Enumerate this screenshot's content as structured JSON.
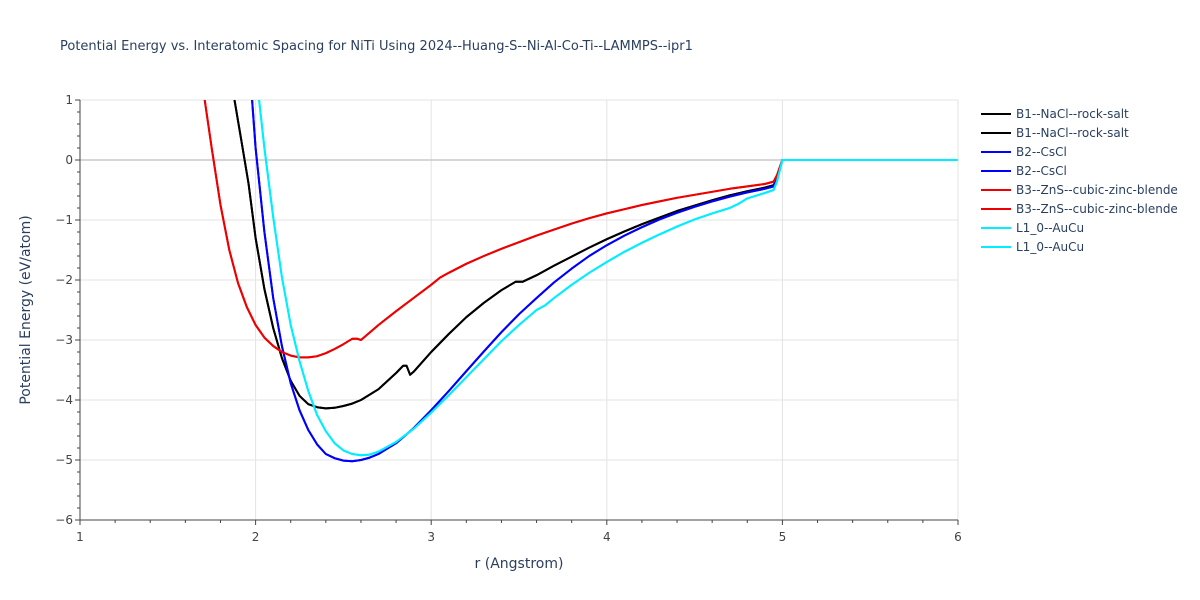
{
  "chart_data": {
    "type": "line",
    "title": "Potential Energy vs. Interatomic Spacing for NiTi Using 2024--Huang-S--Ni-Al-Co-Ti--LAMMPS--ipr1",
    "xlabel": "r (Angstrom)",
    "ylabel": "Potential Energy (eV/atom)",
    "xlim": [
      1,
      6
    ],
    "ylim": [
      -6,
      1
    ],
    "xticks": [
      1,
      2,
      3,
      4,
      5,
      6
    ],
    "yticks": [
      1,
      0,
      -1,
      -2,
      -3,
      -4,
      -5,
      -6
    ],
    "xtick_labels": [
      "1",
      "2",
      "3",
      "4",
      "5",
      "6"
    ],
    "ytick_labels": [
      "1",
      "0",
      "−1",
      "−2",
      "−3",
      "−4",
      "−5",
      "−6"
    ],
    "grid": true,
    "legend_position": "right",
    "series": [
      {
        "name": "B1--NaCl--rock-salt",
        "color": "#000000",
        "x": [
          1.88,
          1.92,
          1.96,
          2.0,
          2.05,
          2.1,
          2.15,
          2.2,
          2.25,
          2.3,
          2.35,
          2.4,
          2.45,
          2.5,
          2.55,
          2.6,
          2.7,
          2.8,
          2.84,
          2.86,
          2.88,
          2.9,
          3.0,
          3.1,
          3.2,
          3.3,
          3.4,
          3.48,
          3.52,
          3.6,
          3.7,
          3.8,
          3.9,
          4.0,
          4.1,
          4.2,
          4.3,
          4.4,
          4.5,
          4.6,
          4.7,
          4.8,
          4.9,
          4.95,
          4.97,
          4.99,
          5.0,
          5.5,
          6.0
        ],
        "y": [
          1.0,
          0.3,
          -0.4,
          -1.3,
          -2.15,
          -2.8,
          -3.3,
          -3.68,
          -3.93,
          -4.07,
          -4.12,
          -4.14,
          -4.13,
          -4.1,
          -4.06,
          -4.0,
          -3.82,
          -3.55,
          -3.43,
          -3.43,
          -3.58,
          -3.53,
          -3.2,
          -2.9,
          -2.62,
          -2.38,
          -2.17,
          -2.03,
          -2.03,
          -1.92,
          -1.76,
          -1.61,
          -1.46,
          -1.32,
          -1.19,
          -1.07,
          -0.96,
          -0.85,
          -0.76,
          -0.67,
          -0.59,
          -0.52,
          -0.46,
          -0.42,
          -0.3,
          -0.1,
          0.0,
          0.0,
          0.0
        ]
      },
      {
        "name": "B1--NaCl--rock-salt",
        "color": "#000000",
        "x": [
          1.88,
          1.92,
          1.96,
          2.0,
          2.05,
          2.1,
          2.15,
          2.2,
          2.25,
          2.3,
          2.35,
          2.4,
          2.45,
          2.5,
          2.55,
          2.6,
          2.7,
          2.8,
          2.84,
          2.86,
          2.88,
          2.9,
          3.0,
          3.1,
          3.2,
          3.3,
          3.4,
          3.48,
          3.52,
          3.6,
          3.7,
          3.8,
          3.9,
          4.0,
          4.1,
          4.2,
          4.3,
          4.4,
          4.5,
          4.6,
          4.7,
          4.8,
          4.9,
          4.95,
          4.97,
          4.99,
          5.0,
          5.5,
          6.0
        ],
        "y": [
          1.0,
          0.3,
          -0.4,
          -1.3,
          -2.15,
          -2.8,
          -3.3,
          -3.68,
          -3.93,
          -4.07,
          -4.12,
          -4.14,
          -4.13,
          -4.1,
          -4.06,
          -4.0,
          -3.82,
          -3.55,
          -3.43,
          -3.43,
          -3.58,
          -3.53,
          -3.2,
          -2.9,
          -2.62,
          -2.38,
          -2.17,
          -2.03,
          -2.03,
          -1.92,
          -1.76,
          -1.61,
          -1.46,
          -1.32,
          -1.19,
          -1.07,
          -0.96,
          -0.85,
          -0.76,
          -0.67,
          -0.59,
          -0.52,
          -0.46,
          -0.42,
          -0.3,
          -0.1,
          0.0,
          0.0,
          0.0
        ]
      },
      {
        "name": "B2--CsCl",
        "color": "#0000ff",
        "x": [
          1.98,
          2.0,
          2.05,
          2.1,
          2.15,
          2.2,
          2.25,
          2.3,
          2.35,
          2.4,
          2.45,
          2.5,
          2.55,
          2.6,
          2.65,
          2.7,
          2.8,
          2.9,
          3.0,
          3.1,
          3.2,
          3.3,
          3.4,
          3.5,
          3.6,
          3.7,
          3.8,
          3.9,
          4.0,
          4.1,
          4.2,
          4.3,
          4.4,
          4.5,
          4.6,
          4.7,
          4.8,
          4.9,
          4.95,
          4.97,
          4.99,
          5.0,
          5.5,
          6.0
        ],
        "y": [
          1.0,
          0.2,
          -1.2,
          -2.3,
          -3.1,
          -3.72,
          -4.17,
          -4.5,
          -4.74,
          -4.9,
          -4.97,
          -5.01,
          -5.02,
          -5.0,
          -4.96,
          -4.9,
          -4.72,
          -4.47,
          -4.17,
          -3.85,
          -3.52,
          -3.19,
          -2.87,
          -2.57,
          -2.3,
          -2.04,
          -1.81,
          -1.6,
          -1.42,
          -1.26,
          -1.12,
          -0.99,
          -0.88,
          -0.78,
          -0.69,
          -0.61,
          -0.54,
          -0.48,
          -0.44,
          -0.3,
          -0.1,
          0.0,
          0.0,
          0.0
        ]
      },
      {
        "name": "B2--CsCl",
        "color": "#0000ff",
        "x": [
          1.98,
          2.0,
          2.05,
          2.1,
          2.15,
          2.2,
          2.25,
          2.3,
          2.35,
          2.4,
          2.45,
          2.5,
          2.55,
          2.6,
          2.65,
          2.7,
          2.8,
          2.9,
          3.0,
          3.1,
          3.2,
          3.3,
          3.4,
          3.5,
          3.6,
          3.7,
          3.8,
          3.9,
          4.0,
          4.1,
          4.2,
          4.3,
          4.4,
          4.5,
          4.6,
          4.7,
          4.8,
          4.9,
          4.95,
          4.97,
          4.99,
          5.0,
          5.5,
          6.0
        ],
        "y": [
          1.0,
          0.2,
          -1.2,
          -2.3,
          -3.1,
          -3.72,
          -4.17,
          -4.5,
          -4.74,
          -4.9,
          -4.97,
          -5.01,
          -5.02,
          -5.0,
          -4.96,
          -4.9,
          -4.72,
          -4.47,
          -4.17,
          -3.85,
          -3.52,
          -3.19,
          -2.87,
          -2.57,
          -2.3,
          -2.04,
          -1.81,
          -1.6,
          -1.42,
          -1.26,
          -1.12,
          -0.99,
          -0.88,
          -0.78,
          -0.69,
          -0.61,
          -0.54,
          -0.48,
          -0.44,
          -0.3,
          -0.1,
          0.0,
          0.0,
          0.0
        ]
      },
      {
        "name": "B3--ZnS--cubic-zinc-blende",
        "color": "#ee0000",
        "x": [
          1.71,
          1.75,
          1.8,
          1.85,
          1.9,
          1.95,
          2.0,
          2.05,
          2.1,
          2.15,
          2.2,
          2.25,
          2.3,
          2.35,
          2.4,
          2.45,
          2.5,
          2.55,
          2.58,
          2.6,
          2.7,
          2.8,
          2.9,
          3.0,
          3.05,
          3.1,
          3.2,
          3.3,
          3.4,
          3.5,
          3.6,
          3.7,
          3.8,
          3.9,
          4.0,
          4.1,
          4.2,
          4.3,
          4.4,
          4.5,
          4.6,
          4.7,
          4.8,
          4.9,
          4.95,
          4.97,
          4.99,
          5.0,
          5.5,
          6.0
        ],
        "y": [
          1.0,
          0.2,
          -0.75,
          -1.5,
          -2.05,
          -2.45,
          -2.75,
          -2.96,
          -3.1,
          -3.2,
          -3.26,
          -3.29,
          -3.29,
          -3.27,
          -3.22,
          -3.15,
          -3.07,
          -2.98,
          -2.98,
          -3.0,
          -2.75,
          -2.52,
          -2.3,
          -2.08,
          -1.96,
          -1.88,
          -1.73,
          -1.6,
          -1.48,
          -1.37,
          -1.26,
          -1.16,
          -1.06,
          -0.97,
          -0.89,
          -0.82,
          -0.75,
          -0.69,
          -0.63,
          -0.58,
          -0.53,
          -0.48,
          -0.44,
          -0.4,
          -0.36,
          -0.25,
          -0.08,
          0.0,
          0.0,
          0.0
        ]
      },
      {
        "name": "B3--ZnS--cubic-zinc-blende",
        "color": "#ee0000",
        "x": [
          1.71,
          1.75,
          1.8,
          1.85,
          1.9,
          1.95,
          2.0,
          2.05,
          2.1,
          2.15,
          2.2,
          2.25,
          2.3,
          2.35,
          2.4,
          2.45,
          2.5,
          2.55,
          2.58,
          2.6,
          2.7,
          2.8,
          2.9,
          3.0,
          3.05,
          3.1,
          3.2,
          3.3,
          3.4,
          3.5,
          3.6,
          3.7,
          3.8,
          3.9,
          4.0,
          4.1,
          4.2,
          4.3,
          4.4,
          4.5,
          4.6,
          4.7,
          4.8,
          4.9,
          4.95,
          4.97,
          4.99,
          5.0,
          5.5,
          6.0
        ],
        "y": [
          1.0,
          0.2,
          -0.75,
          -1.5,
          -2.05,
          -2.45,
          -2.75,
          -2.96,
          -3.1,
          -3.2,
          -3.26,
          -3.29,
          -3.29,
          -3.27,
          -3.22,
          -3.15,
          -3.07,
          -2.98,
          -2.98,
          -3.0,
          -2.75,
          -2.52,
          -2.3,
          -2.08,
          -1.96,
          -1.88,
          -1.73,
          -1.6,
          -1.48,
          -1.37,
          -1.26,
          -1.16,
          -1.06,
          -0.97,
          -0.89,
          -0.82,
          -0.75,
          -0.69,
          -0.63,
          -0.58,
          -0.53,
          -0.48,
          -0.44,
          -0.4,
          -0.36,
          -0.25,
          -0.08,
          0.0,
          0.0,
          0.0
        ]
      },
      {
        "name": "L1_0--AuCu",
        "color": "#00eeff",
        "x": [
          2.02,
          2.05,
          2.1,
          2.15,
          2.2,
          2.25,
          2.3,
          2.35,
          2.4,
          2.45,
          2.5,
          2.55,
          2.6,
          2.65,
          2.7,
          2.8,
          2.9,
          3.0,
          3.1,
          3.2,
          3.3,
          3.4,
          3.5,
          3.6,
          3.65,
          3.7,
          3.8,
          3.9,
          4.0,
          4.1,
          4.2,
          4.3,
          4.4,
          4.5,
          4.6,
          4.7,
          4.75,
          4.8,
          4.9,
          4.95,
          4.97,
          4.99,
          5.0,
          5.5,
          6.0
        ],
        "y": [
          1.0,
          0.2,
          -0.95,
          -1.95,
          -2.75,
          -3.35,
          -3.85,
          -4.25,
          -4.52,
          -4.72,
          -4.84,
          -4.9,
          -4.92,
          -4.91,
          -4.86,
          -4.7,
          -4.48,
          -4.21,
          -3.92,
          -3.62,
          -3.32,
          -3.02,
          -2.75,
          -2.5,
          -2.42,
          -2.3,
          -2.08,
          -1.88,
          -1.7,
          -1.53,
          -1.38,
          -1.24,
          -1.11,
          -0.99,
          -0.89,
          -0.8,
          -0.73,
          -0.64,
          -0.55,
          -0.5,
          -0.35,
          -0.12,
          0.0,
          0.0,
          0.0
        ]
      },
      {
        "name": "L1_0--AuCu",
        "color": "#00eeff",
        "x": [
          2.02,
          2.05,
          2.1,
          2.15,
          2.2,
          2.25,
          2.3,
          2.35,
          2.4,
          2.45,
          2.5,
          2.55,
          2.6,
          2.65,
          2.7,
          2.8,
          2.9,
          3.0,
          3.1,
          3.2,
          3.3,
          3.4,
          3.5,
          3.6,
          3.65,
          3.7,
          3.8,
          3.9,
          4.0,
          4.1,
          4.2,
          4.3,
          4.4,
          4.5,
          4.6,
          4.7,
          4.75,
          4.8,
          4.9,
          4.95,
          4.97,
          4.99,
          5.0,
          5.5,
          6.0
        ],
        "y": [
          1.0,
          0.2,
          -0.95,
          -1.95,
          -2.75,
          -3.35,
          -3.85,
          -4.25,
          -4.52,
          -4.72,
          -4.84,
          -4.9,
          -4.92,
          -4.91,
          -4.86,
          -4.7,
          -4.48,
          -4.21,
          -3.92,
          -3.62,
          -3.32,
          -3.02,
          -2.75,
          -2.5,
          -2.42,
          -2.3,
          -2.08,
          -1.88,
          -1.7,
          -1.53,
          -1.38,
          -1.24,
          -1.11,
          -0.99,
          -0.89,
          -0.8,
          -0.73,
          -0.64,
          -0.55,
          -0.5,
          -0.35,
          -0.12,
          0.0,
          0.0,
          0.0
        ]
      }
    ]
  }
}
